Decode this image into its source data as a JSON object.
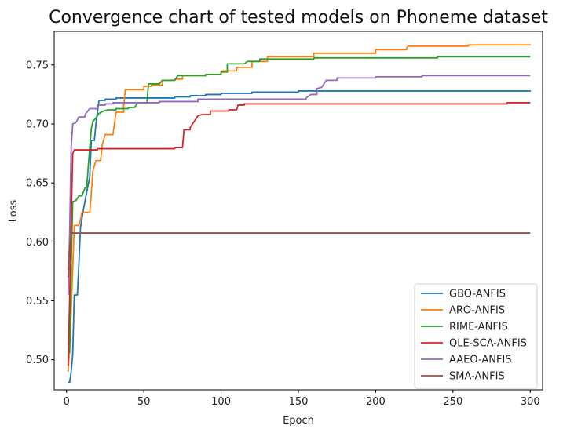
{
  "chart_data": {
    "type": "line",
    "title": "Convergence chart of tested models on Phoneme dataset",
    "xlabel": "Epoch",
    "ylabel": "Loss",
    "xlim": [
      -8,
      308
    ],
    "ylim": [
      0.4745,
      0.7785
    ],
    "xticks": [
      0,
      50,
      100,
      150,
      200,
      250,
      300
    ],
    "yticks": [
      0.5,
      0.55,
      0.6,
      0.65,
      0.7,
      0.75
    ],
    "grid": false,
    "legend_position": "lower-right",
    "series": [
      {
        "name": "GBO-ANFIS",
        "color": "#1f77b4",
        "points": [
          [
            1,
            0.481
          ],
          [
            2,
            0.481
          ],
          [
            3,
            0.49
          ],
          [
            4,
            0.505
          ],
          [
            5,
            0.555
          ],
          [
            7,
            0.555
          ],
          [
            8,
            0.582
          ],
          [
            9,
            0.612
          ],
          [
            11,
            0.628
          ],
          [
            13,
            0.642
          ],
          [
            15,
            0.655
          ],
          [
            16,
            0.686
          ],
          [
            18,
            0.686
          ],
          [
            19,
            0.7
          ],
          [
            20,
            0.71
          ],
          [
            21,
            0.72
          ],
          [
            25,
            0.721
          ],
          [
            32,
            0.722
          ],
          [
            45,
            0.722
          ],
          [
            65,
            0.722
          ],
          [
            70,
            0.723
          ],
          [
            80,
            0.724
          ],
          [
            90,
            0.725
          ],
          [
            100,
            0.726
          ],
          [
            120,
            0.727
          ],
          [
            150,
            0.728
          ],
          [
            200,
            0.728
          ],
          [
            250,
            0.728
          ],
          [
            300,
            0.7285
          ]
        ]
      },
      {
        "name": "ARO-ANFIS",
        "color": "#ff7f0e",
        "points": [
          [
            1,
            0.49
          ],
          [
            2,
            0.51
          ],
          [
            3,
            0.542
          ],
          [
            4,
            0.578
          ],
          [
            5,
            0.614
          ],
          [
            8,
            0.614
          ],
          [
            9,
            0.619
          ],
          [
            10,
            0.625
          ],
          [
            15,
            0.625
          ],
          [
            16,
            0.641
          ],
          [
            17,
            0.66
          ],
          [
            19,
            0.669
          ],
          [
            22,
            0.669
          ],
          [
            23,
            0.682
          ],
          [
            25,
            0.691
          ],
          [
            30,
            0.691
          ],
          [
            32,
            0.71
          ],
          [
            37,
            0.716
          ],
          [
            38,
            0.729
          ],
          [
            45,
            0.729
          ],
          [
            50,
            0.732
          ],
          [
            55,
            0.733
          ],
          [
            62,
            0.737
          ],
          [
            70,
            0.738
          ],
          [
            75,
            0.741
          ],
          [
            90,
            0.742
          ],
          [
            100,
            0.745
          ],
          [
            110,
            0.748
          ],
          [
            120,
            0.753
          ],
          [
            130,
            0.757
          ],
          [
            160,
            0.76
          ],
          [
            200,
            0.763
          ],
          [
            220,
            0.764
          ],
          [
            221,
            0.766
          ],
          [
            260,
            0.767
          ],
          [
            300,
            0.7675
          ]
        ]
      },
      {
        "name": "RIME-ANFIS",
        "color": "#2ca02c",
        "points": [
          [
            1,
            0.506
          ],
          [
            2,
            0.506
          ],
          [
            3,
            0.58
          ],
          [
            4,
            0.634
          ],
          [
            6,
            0.635
          ],
          [
            8,
            0.639
          ],
          [
            10,
            0.639
          ],
          [
            12,
            0.646
          ],
          [
            13,
            0.646
          ],
          [
            14,
            0.663
          ],
          [
            15,
            0.68
          ],
          [
            16,
            0.696
          ],
          [
            17,
            0.702
          ],
          [
            19,
            0.705
          ],
          [
            21,
            0.709
          ],
          [
            24,
            0.711
          ],
          [
            27,
            0.712
          ],
          [
            32,
            0.713
          ],
          [
            40,
            0.714
          ],
          [
            44,
            0.714
          ],
          [
            46,
            0.718
          ],
          [
            52,
            0.718
          ],
          [
            53,
            0.734
          ],
          [
            60,
            0.734
          ],
          [
            62,
            0.737
          ],
          [
            70,
            0.737
          ],
          [
            72,
            0.741
          ],
          [
            90,
            0.742
          ],
          [
            100,
            0.744
          ],
          [
            104,
            0.751
          ],
          [
            115,
            0.751
          ],
          [
            117,
            0.753
          ],
          [
            125,
            0.755
          ],
          [
            160,
            0.756
          ],
          [
            200,
            0.756
          ],
          [
            220,
            0.756
          ],
          [
            240,
            0.757
          ],
          [
            300,
            0.757
          ]
        ]
      },
      {
        "name": "QLE-SCA-ANFIS",
        "color": "#d62728",
        "points": [
          [
            1,
            0.495
          ],
          [
            2,
            0.552
          ],
          [
            3,
            0.619
          ],
          [
            4,
            0.675
          ],
          [
            5,
            0.678
          ],
          [
            20,
            0.679
          ],
          [
            40,
            0.679
          ],
          [
            60,
            0.679
          ],
          [
            70,
            0.68
          ],
          [
            75,
            0.68
          ],
          [
            76,
            0.695
          ],
          [
            80,
            0.697
          ],
          [
            82,
            0.701
          ],
          [
            85,
            0.707
          ],
          [
            88,
            0.708
          ],
          [
            93,
            0.711
          ],
          [
            105,
            0.712
          ],
          [
            110,
            0.712
          ],
          [
            111,
            0.716
          ],
          [
            115,
            0.717
          ],
          [
            150,
            0.717
          ],
          [
            200,
            0.717
          ],
          [
            250,
            0.717
          ],
          [
            280,
            0.717
          ],
          [
            285,
            0.718
          ],
          [
            300,
            0.718
          ]
        ]
      },
      {
        "name": "AAEO-ANFIS",
        "color": "#9467bd",
        "points": [
          [
            1,
            0.555
          ],
          [
            2,
            0.608
          ],
          [
            3,
            0.68
          ],
          [
            4,
            0.7
          ],
          [
            6,
            0.701
          ],
          [
            8,
            0.706
          ],
          [
            12,
            0.708
          ],
          [
            15,
            0.713
          ],
          [
            20,
            0.716
          ],
          [
            25,
            0.717
          ],
          [
            30,
            0.718
          ],
          [
            60,
            0.719
          ],
          [
            80,
            0.719
          ],
          [
            85,
            0.721
          ],
          [
            100,
            0.721
          ],
          [
            150,
            0.721
          ],
          [
            155,
            0.722
          ],
          [
            158,
            0.725
          ],
          [
            162,
            0.73
          ],
          [
            165,
            0.731
          ],
          [
            168,
            0.737
          ],
          [
            175,
            0.739
          ],
          [
            200,
            0.74
          ],
          [
            230,
            0.741
          ],
          [
            300,
            0.741
          ]
        ]
      },
      {
        "name": "SMA-ANFIS",
        "color": "#8c564b",
        "points": [
          [
            1,
            0.57
          ],
          [
            2,
            0.595
          ],
          [
            3,
            0.6075
          ],
          [
            300,
            0.6075
          ]
        ]
      }
    ]
  }
}
